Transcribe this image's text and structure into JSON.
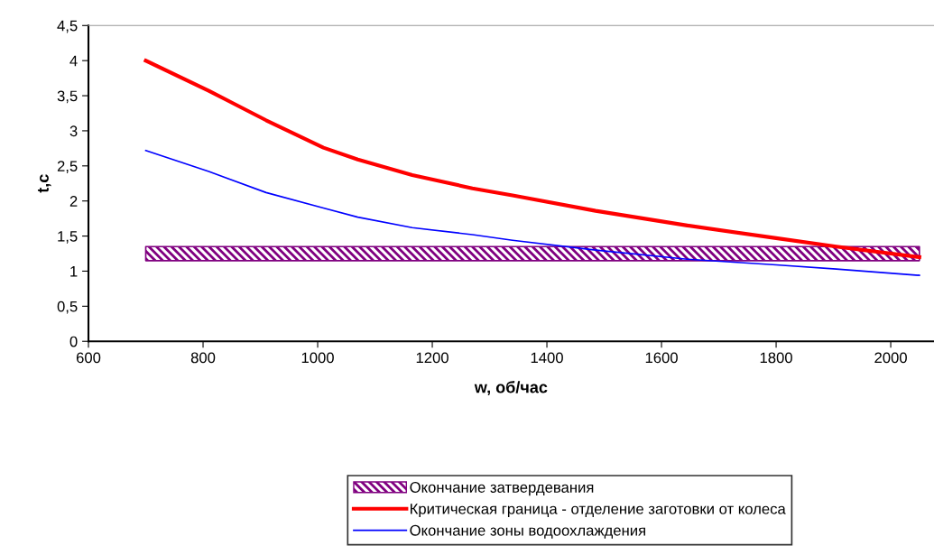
{
  "chart_data": {
    "type": "line",
    "xlabel": "w, об/час",
    "ylabel": "t,c",
    "xlim": [
      600,
      2075
    ],
    "xticks": [
      600,
      800,
      1000,
      1200,
      1400,
      1600,
      1800,
      2000
    ],
    "ylim": [
      0,
      4.5
    ],
    "yticks": [
      0,
      {
        "value": 0.5,
        "label": "0,5"
      },
      1,
      {
        "value": 1.5,
        "label": "1,5"
      },
      2,
      {
        "value": 2.5,
        "label": "2,5"
      },
      3,
      {
        "value": 3.5,
        "label": "3,5"
      },
      4,
      {
        "value": 4.5,
        "label": "4,5"
      }
    ],
    "grid": false,
    "legend": "bottom",
    "marker": "none",
    "series": [
      {
        "name": "Критическая граница - отделение заготовки от колеса",
        "color": "#ff0000",
        "x": [
          700,
          810,
          910,
          1010,
          1070,
          1165,
          1270,
          1340,
          1485,
          1645,
          1800,
          1905,
          2050
        ],
        "values": [
          4.0,
          3.57,
          3.15,
          2.76,
          2.59,
          2.37,
          2.18,
          2.08,
          1.86,
          1.65,
          1.47,
          1.35,
          1.2
        ]
      },
      {
        "name": "Окончание зоны водоохлаждения",
        "color": "#0000ff",
        "x": [
          700,
          810,
          910,
          1010,
          1070,
          1165,
          1270,
          1340,
          1485,
          1645,
          1800,
          1905,
          2050
        ],
        "values": [
          2.72,
          2.42,
          2.12,
          1.9,
          1.77,
          1.62,
          1.52,
          1.44,
          1.3,
          1.17,
          1.09,
          1.03,
          0.94
        ]
      }
    ],
    "bands": [
      {
        "axis": "y",
        "from": 1.15,
        "to": 1.35,
        "label": "Окончание затвердевания",
        "color": "#800080"
      }
    ]
  }
}
